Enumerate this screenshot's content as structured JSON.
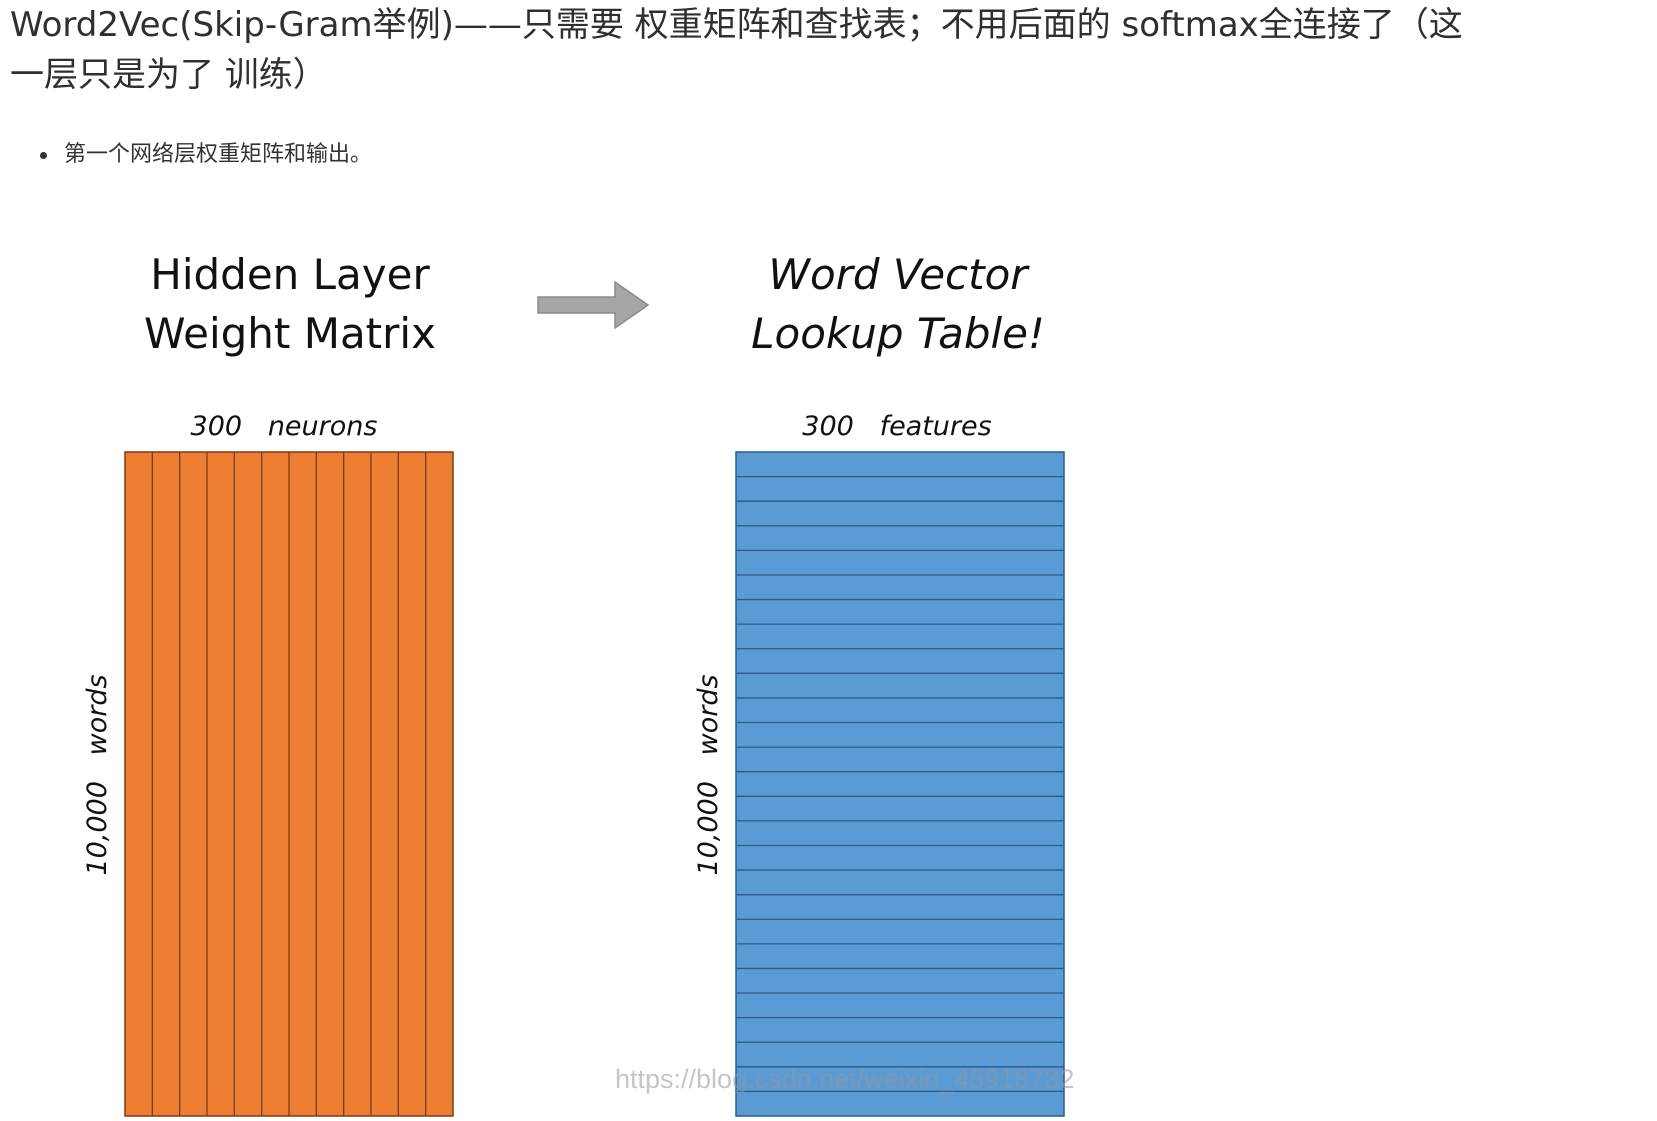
{
  "heading": {
    "line1": "Word2Vec(Skip-Gram举例)——只需要 权重矩阵和查找表；不用后面的 softmax全连接了（这",
    "line2": "一层只是为了 训练）"
  },
  "bullets": [
    "第一个网络层权重矩阵和输出。"
  ],
  "figure": {
    "left_title_line1": "Hidden Layer",
    "left_title_line2": "Weight Matrix",
    "right_title_line1": "Word Vector",
    "right_title_line2": "Lookup Table!",
    "left_top_label": "300   neurons",
    "right_top_label": "300   features",
    "left_side_label": "10,000   words",
    "right_side_label": "10,000   words",
    "left_matrix_color": "#ED7D31",
    "right_matrix_color": "#5B9BD5",
    "arrow_color": "#A6A6A6",
    "left_columns": 12,
    "right_rows": 27
  },
  "watermark": "https://blog.csdn.net/weixin_45918732"
}
